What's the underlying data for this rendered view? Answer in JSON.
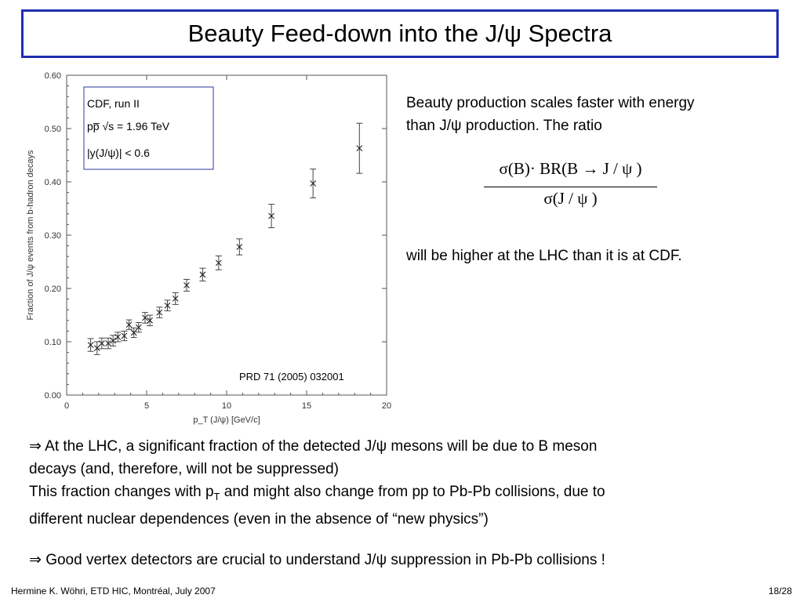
{
  "slide": {
    "title": "Beauty Feed-down into the J/ψ Spectra",
    "side_text_1a": "Beauty production scales faster with energy",
    "side_text_1b": "than J/ψ production.  The ratio",
    "formula_numerator": "σ(B)· BR(B → J / ψ )",
    "formula_denominator": "σ(J / ψ )",
    "side_text_2": "will be higher at the LHC than it is at CDF.",
    "bullet_1a": "⇒ At the LHC, a significant fraction of the detected J/ψ mesons will be due to B meson",
    "bullet_1b": "decays (and, therefore, will not be suppressed)",
    "line_2a": "This fraction changes with p",
    "line_2a_sub": "T",
    "line_2a_rest": " and might also change from pp to Pb-Pb collisions, due to",
    "line_2b": "different nuclear dependences (even in the absence of “new physics”)",
    "bullet_2": "⇒ Good vertex detectors are crucial to understand J/ψ suppression in Pb-Pb collisions !",
    "footer_left": "Hermine K. Wöhri, ETD HIC, Montréal, July 2007",
    "footer_right": "18/28"
  },
  "chart_data": {
    "type": "scatter",
    "xlabel": "p_T (J/ψ) [GeV/c]",
    "ylabel": "Fraction of J/ψ events from b-hadron decays",
    "xlim": [
      0,
      20
    ],
    "ylim": [
      0,
      0.6
    ],
    "x_ticks": [
      "0",
      "5",
      "10",
      "15",
      "20"
    ],
    "y_ticks": [
      "0.00",
      "0.10",
      "0.20",
      "0.30",
      "0.40",
      "0.50",
      "0.60"
    ],
    "legend_lines": [
      "CDF, run II",
      "pp̅ √s = 1.96 TeV",
      "|y(J/ψ)| < 0.6"
    ],
    "legend_position": "top-left",
    "annotation": "PRD 71 (2005) 032001",
    "grid": false,
    "points": [
      {
        "x": 1.5,
        "y": 0.094,
        "err": 0.012
      },
      {
        "x": 1.9,
        "y": 0.088,
        "err": 0.012
      },
      {
        "x": 2.2,
        "y": 0.097,
        "err": 0.01
      },
      {
        "x": 2.6,
        "y": 0.097,
        "err": 0.01
      },
      {
        "x": 2.9,
        "y": 0.102,
        "err": 0.01
      },
      {
        "x": 3.2,
        "y": 0.109,
        "err": 0.009
      },
      {
        "x": 3.6,
        "y": 0.111,
        "err": 0.009
      },
      {
        "x": 3.9,
        "y": 0.132,
        "err": 0.009
      },
      {
        "x": 4.2,
        "y": 0.117,
        "err": 0.009
      },
      {
        "x": 4.5,
        "y": 0.127,
        "err": 0.009
      },
      {
        "x": 4.9,
        "y": 0.145,
        "err": 0.01
      },
      {
        "x": 5.2,
        "y": 0.14,
        "err": 0.01
      },
      {
        "x": 5.8,
        "y": 0.155,
        "err": 0.01
      },
      {
        "x": 6.3,
        "y": 0.168,
        "err": 0.01
      },
      {
        "x": 6.8,
        "y": 0.181,
        "err": 0.011
      },
      {
        "x": 7.5,
        "y": 0.206,
        "err": 0.011
      },
      {
        "x": 8.5,
        "y": 0.226,
        "err": 0.012
      },
      {
        "x": 9.5,
        "y": 0.248,
        "err": 0.013
      },
      {
        "x": 10.8,
        "y": 0.278,
        "err": 0.015
      },
      {
        "x": 12.8,
        "y": 0.336,
        "err": 0.022
      },
      {
        "x": 15.4,
        "y": 0.397,
        "err": 0.027
      },
      {
        "x": 18.3,
        "y": 0.463,
        "err": 0.047
      }
    ]
  }
}
